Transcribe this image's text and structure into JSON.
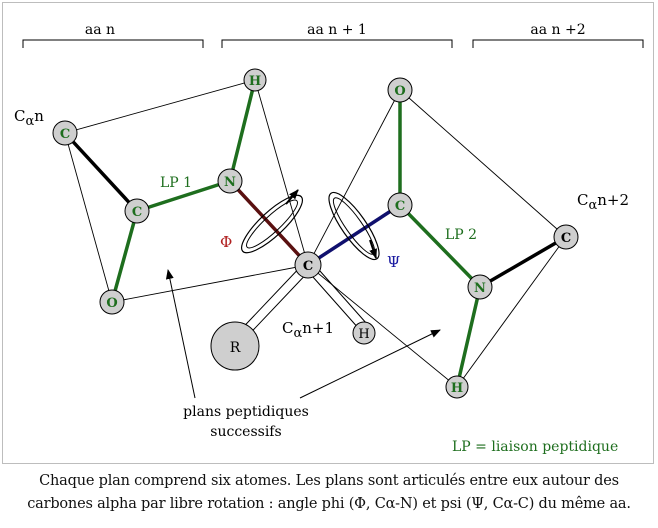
{
  "residues": {
    "n": "aa n",
    "n_plus_1": "aa n + 1",
    "n_plus_2": "aa n +2"
  },
  "atoms": {
    "ca_n": "C",
    "c_left": "C",
    "o_left": "O",
    "n_left": "N",
    "h_top": "H",
    "ca_center": "C",
    "r_group": "R",
    "h_small": "H",
    "c_right": "C",
    "o_right": "O",
    "n_right": "N",
    "h_bottom": "H",
    "ca_n2": "C"
  },
  "labels": {
    "ca_n_prefix": "C",
    "ca_n_greek": "α",
    "ca_n_suffix": "n",
    "ca_n1_prefix": "C",
    "ca_n1_greek": "α",
    "ca_n1_suffix": "n+1",
    "ca_n2_prefix": "C",
    "ca_n2_greek": "α",
    "ca_n2_suffix": "n+2",
    "lp1": "LP 1",
    "lp2": "LP 2",
    "phi": "Φ",
    "psi": "Ψ",
    "planes_line1": "plans peptidiques",
    "planes_line2": "successifs",
    "legend": "LP = liaison peptidique"
  },
  "caption": {
    "line1": "Chaque plan comprend six atomes. Les plans sont articulés entre eux autour des",
    "line2": "carbones alpha par libre rotation : angle phi (Φ, Cα-N) et psi (Ψ, Cα-C) du même aa."
  },
  "colors": {
    "peptide_bond": "#1e6e1e",
    "phi_bond": "#5a1010",
    "psi_bond": "#10106e",
    "atom_fill": "#cfcfcf",
    "atom_label": "#1e6e1e",
    "phi_label": "#b02020",
    "psi_label": "#1a1aa0"
  }
}
